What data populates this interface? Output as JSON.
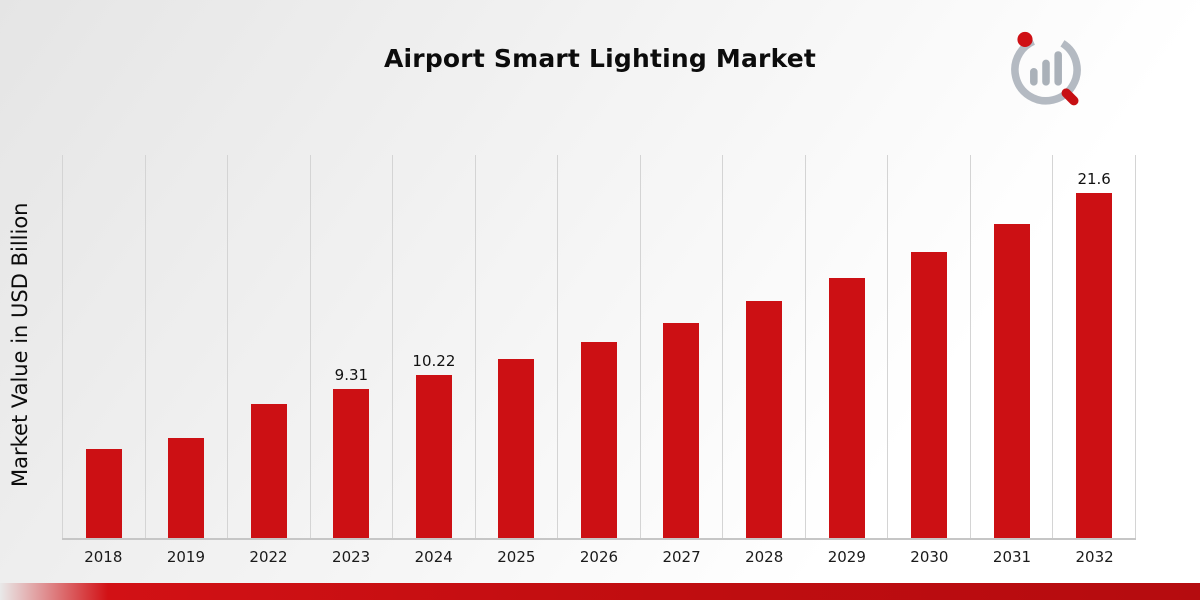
{
  "title": "Airport Smart Lighting Market",
  "ylabel": "Market Value in USD Billion",
  "colors": {
    "bar": "#cc1014",
    "gridline": "#d4d4d4",
    "footer": "#c00d10",
    "logo_gray": "#aeb5bd",
    "logo_red": "#cf1015"
  },
  "chart_data": {
    "type": "bar",
    "title": "Airport Smart Lighting Market",
    "ylabel": "Market Value in USD Billion",
    "xlabel": "",
    "categories": [
      "2018",
      "2019",
      "2022",
      "2023",
      "2024",
      "2025",
      "2026",
      "2027",
      "2028",
      "2029",
      "2030",
      "2031",
      "2032"
    ],
    "values": [
      5.6,
      6.25,
      8.4,
      9.31,
      10.22,
      11.2,
      12.3,
      13.5,
      14.85,
      16.3,
      17.9,
      19.65,
      21.6
    ],
    "data_labels": {
      "2023": "9.31",
      "2024": "10.22",
      "2032": "21.6"
    },
    "ylim": [
      0,
      24
    ],
    "grid": "vertical",
    "legend": "none",
    "bar_color": "#cc1014"
  }
}
